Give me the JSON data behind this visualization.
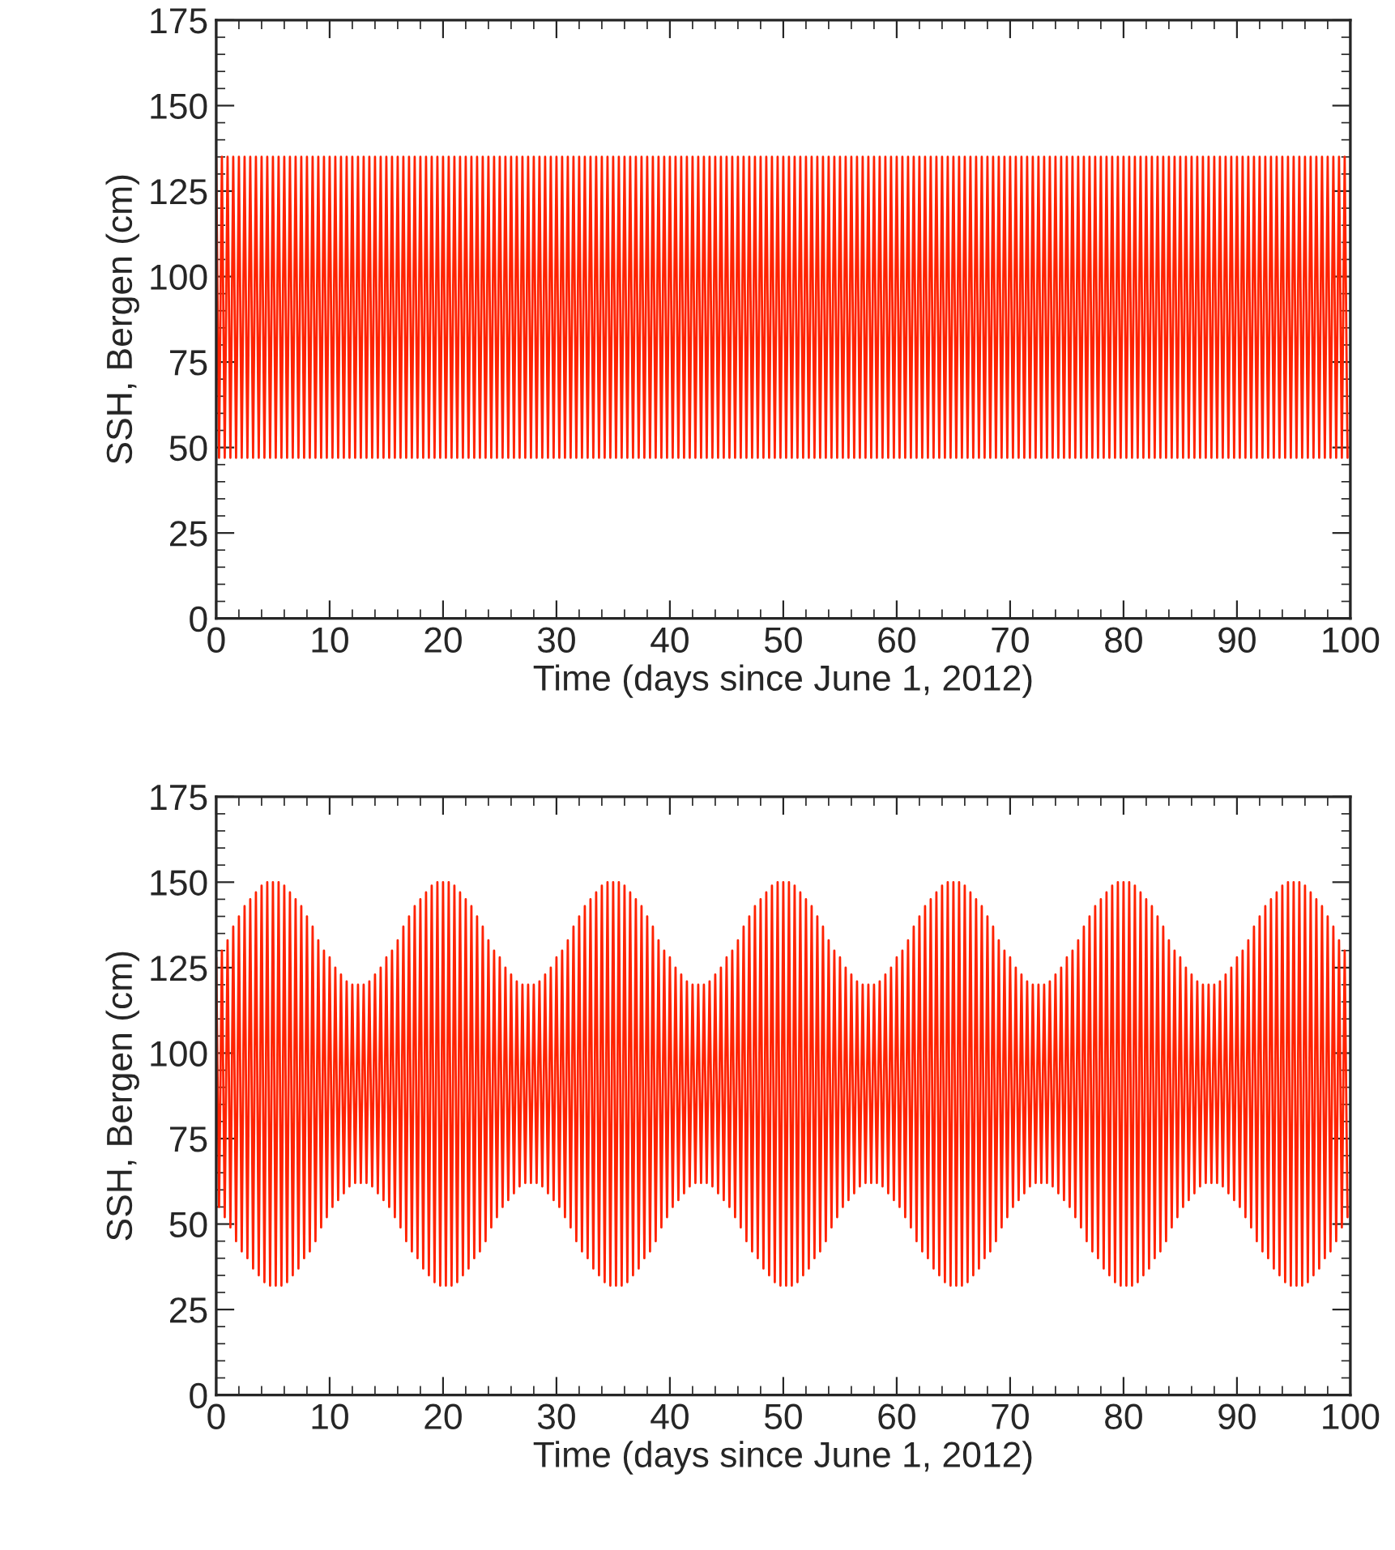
{
  "chart_data": [
    {
      "type": "line",
      "xlabel": "Time (days since June 1, 2012)",
      "ylabel": "SSH, Bergen (cm)",
      "xlim": [
        0,
        100
      ],
      "ylim": [
        0,
        175
      ],
      "xticks": [
        0,
        10,
        20,
        30,
        40,
        50,
        60,
        70,
        80,
        90,
        100
      ],
      "yticks": [
        0,
        25,
        50,
        75,
        100,
        125,
        150,
        175
      ],
      "grid": false,
      "legend": false,
      "marker": "none",
      "line_style": "solid",
      "x": [
        0,
        0.25,
        0.5,
        0.75,
        1,
        1.25,
        1.5,
        1.75,
        2,
        2.25,
        2.5,
        2.75,
        3,
        3.25,
        3.5,
        3.75,
        4,
        4.25,
        4.5,
        4.75,
        5,
        5.25,
        5.5,
        5.75,
        6,
        6.25,
        6.5,
        6.75,
        7,
        7.25,
        7.5,
        7.75,
        8,
        8.25,
        8.5,
        8.75,
        9,
        9.25,
        9.5,
        9.75,
        10,
        10.25,
        10.5,
        10.75,
        11,
        11.25,
        11.5,
        11.75,
        12,
        12.25,
        12.5,
        12.75,
        13,
        13.25,
        13.5,
        13.75,
        14,
        14.25,
        14.5,
        14.75,
        15,
        15.25,
        15.5,
        15.75,
        16,
        16.25,
        16.5,
        16.75,
        17,
        17.25,
        17.5,
        17.75,
        18,
        18.25,
        18.5,
        18.75,
        19,
        19.25,
        19.5,
        19.75,
        20,
        20.25,
        20.5,
        20.75,
        21,
        21.25,
        21.5,
        21.75,
        22,
        22.25,
        22.5,
        22.75,
        23,
        23.25,
        23.5,
        23.75,
        24,
        24.25,
        24.5,
        24.75,
        25,
        25.25,
        25.5,
        25.75,
        26,
        26.25,
        26.5,
        26.75,
        27,
        27.25,
        27.5,
        27.75,
        28,
        28.25,
        28.5,
        28.75,
        29,
        29.25,
        29.5,
        29.75,
        30,
        30.25,
        30.5,
        30.75,
        31,
        31.25,
        31.5,
        31.75,
        32,
        32.25,
        32.5,
        32.75,
        33,
        33.25,
        33.5,
        33.75,
        34,
        34.25,
        34.5,
        34.75,
        35,
        35.25,
        35.5,
        35.75,
        36,
        36.25,
        36.5,
        36.75,
        37,
        37.25,
        37.5,
        37.75,
        38,
        38.25,
        38.5,
        38.75,
        39,
        39.25,
        39.5,
        39.75,
        40,
        40.25,
        40.5,
        40.75,
        41,
        41.25,
        41.5,
        41.75,
        42,
        42.25,
        42.5,
        42.75,
        43,
        43.25,
        43.5,
        43.75,
        44,
        44.25,
        44.5,
        44.75,
        45,
        45.25,
        45.5,
        45.75,
        46,
        46.25,
        46.5,
        46.75,
        47,
        47.25,
        47.5,
        47.75,
        48,
        48.25,
        48.5,
        48.75,
        49,
        49.25,
        49.5,
        49.75,
        50,
        50.25,
        50.5,
        50.75,
        51,
        51.25,
        51.5,
        51.75,
        52,
        52.25,
        52.5,
        52.75,
        53,
        53.25,
        53.5,
        53.75,
        54,
        54.25,
        54.5,
        54.75,
        55,
        55.25,
        55.5,
        55.75,
        56,
        56.25,
        56.5,
        56.75,
        57,
        57.25,
        57.5,
        57.75,
        58,
        58.25,
        58.5,
        58.75,
        59,
        59.25,
        59.5,
        59.75,
        60,
        60.25,
        60.5,
        60.75,
        61,
        61.25,
        61.5,
        61.75,
        62,
        62.25,
        62.5,
        62.75,
        63,
        63.25,
        63.5,
        63.75,
        64,
        64.25,
        64.5,
        64.75,
        65,
        65.25,
        65.5,
        65.75,
        66,
        66.25,
        66.5,
        66.75,
        67,
        67.25,
        67.5,
        67.75,
        68,
        68.25,
        68.5,
        68.75,
        69,
        69.25,
        69.5,
        69.75,
        70,
        70.25,
        70.5,
        70.75,
        71,
        71.25,
        71.5,
        71.75,
        72,
        72.25,
        72.5,
        72.75,
        73,
        73.25,
        73.5,
        73.75,
        74,
        74.25,
        74.5,
        74.75,
        75,
        75.25,
        75.5,
        75.75,
        76,
        76.25,
        76.5,
        76.75,
        77,
        77.25,
        77.5,
        77.75,
        78,
        78.25,
        78.5,
        78.75,
        79,
        79.25,
        79.5,
        79.75,
        80,
        80.25,
        80.5,
        80.75,
        81,
        81.25,
        81.5,
        81.75,
        82,
        82.25,
        82.5,
        82.75,
        83,
        83.25,
        83.5,
        83.75,
        84,
        84.25,
        84.5,
        84.75,
        85,
        85.25,
        85.5,
        85.75,
        86,
        86.25,
        86.5,
        86.75,
        87,
        87.25,
        87.5,
        87.75,
        88,
        88.25,
        88.5,
        88.75,
        89,
        89.25,
        89.5,
        89.75,
        90,
        90.25,
        90.5,
        90.75,
        91,
        91.25,
        91.5,
        91.75,
        92,
        92.25,
        92.5,
        92.75,
        93,
        93.25,
        93.5,
        93.75,
        94,
        94.25,
        94.5,
        94.75,
        95,
        95.25,
        95.5,
        95.75,
        96,
        96.25,
        96.5,
        96.75,
        97,
        97.25,
        97.5,
        97.75,
        98,
        98.25,
        98.5,
        98.75,
        99,
        99.25,
        99.5,
        99.75
      ],
      "series": [
        {
          "color": "#ff2200",
          "values": [
            135,
            47,
            135,
            47,
            135,
            47,
            135,
            47,
            135,
            47,
            135,
            47,
            135,
            47,
            135,
            47,
            135,
            47,
            135,
            47,
            135,
            47,
            135,
            47,
            135,
            47,
            135,
            47,
            135,
            47,
            135,
            47,
            135,
            47,
            135,
            47,
            135,
            47,
            135,
            47,
            135,
            47,
            135,
            47,
            135,
            47,
            135,
            47,
            135,
            47,
            135,
            47,
            135,
            47,
            135,
            47,
            135,
            47,
            135,
            47,
            135,
            47,
            135,
            47,
            135,
            47,
            135,
            47,
            135,
            47,
            135,
            47,
            135,
            47,
            135,
            47,
            135,
            47,
            135,
            47,
            135,
            47,
            135,
            47,
            135,
            47,
            135,
            47,
            135,
            47,
            135,
            47,
            135,
            47,
            135,
            47,
            135,
            47,
            135,
            47,
            135,
            47,
            135,
            47,
            135,
            47,
            135,
            47,
            135,
            47,
            135,
            47,
            135,
            47,
            135,
            47,
            135,
            47,
            135,
            47,
            135,
            47,
            135,
            47,
            135,
            47,
            135,
            47,
            135,
            47,
            135,
            47,
            135,
            47,
            135,
            47,
            135,
            47,
            135,
            47,
            135,
            47,
            135,
            47,
            135,
            47,
            135,
            47,
            135,
            47,
            135,
            47,
            135,
            47,
            135,
            47,
            135,
            47,
            135,
            47,
            135,
            47,
            135,
            47,
            135,
            47,
            135,
            47,
            135,
            47,
            135,
            47,
            135,
            47,
            135,
            47,
            135,
            47,
            135,
            47,
            135,
            47,
            135,
            47,
            135,
            47,
            135,
            47,
            135,
            47,
            135,
            47,
            135,
            47,
            135,
            47,
            135,
            47,
            135,
            47,
            135,
            47,
            135,
            47,
            135,
            47,
            135,
            47,
            135,
            47,
            135,
            47,
            135,
            47,
            135,
            47,
            135,
            47,
            135,
            47,
            135,
            47,
            135,
            47,
            135,
            47,
            135,
            47,
            135,
            47,
            135,
            47,
            135,
            47,
            135,
            47,
            135,
            47,
            135,
            47,
            135,
            47,
            135,
            47,
            135,
            47,
            135,
            47,
            135,
            47,
            135,
            47,
            135,
            47,
            135,
            47,
            135,
            47,
            135,
            47,
            135,
            47,
            135,
            47,
            135,
            47,
            135,
            47,
            135,
            47,
            135,
            47,
            135,
            47,
            135,
            47,
            135,
            47,
            135,
            47,
            135,
            47,
            135,
            47,
            135,
            47,
            135,
            47,
            135,
            47,
            135,
            47,
            135,
            47,
            135,
            47,
            135,
            47,
            135,
            47,
            135,
            47,
            135,
            47,
            135,
            47,
            135,
            47,
            135,
            47,
            135,
            47,
            135,
            47,
            135,
            47,
            135,
            47,
            135,
            47,
            135,
            47,
            135,
            47,
            135,
            47,
            135,
            47,
            135,
            47,
            135,
            47,
            135,
            47,
            135,
            47,
            135,
            47,
            135,
            47,
            135,
            47,
            135,
            47,
            135,
            47,
            135,
            47,
            135,
            47,
            135,
            47,
            135,
            47,
            135,
            47,
            135,
            47,
            135,
            47,
            135,
            47,
            135,
            47,
            135,
            47,
            135,
            47,
            135,
            47,
            135,
            47,
            135,
            47,
            135,
            47,
            135,
            47,
            135,
            47,
            135,
            47,
            135,
            47,
            135,
            47,
            135,
            47,
            135,
            47,
            135,
            47,
            135,
            47,
            135,
            47,
            135,
            47,
            135,
            47
          ]
        }
      ]
    },
    {
      "type": "line",
      "xlabel": "Time (days since June 1, 2012)",
      "ylabel": "SSH, Bergen (cm)",
      "xlim": [
        0,
        100
      ],
      "ylim": [
        0,
        175
      ],
      "xticks": [
        0,
        10,
        20,
        30,
        40,
        50,
        60,
        70,
        80,
        90,
        100
      ],
      "yticks": [
        0,
        25,
        50,
        75,
        100,
        125,
        150,
        175
      ],
      "grid": false,
      "legend": false,
      "marker": "none",
      "line_style": "solid",
      "x": [
        0,
        0.25,
        0.5,
        0.75,
        1,
        1.25,
        1.5,
        1.75,
        2,
        2.25,
        2.5,
        2.75,
        3,
        3.25,
        3.5,
        3.75,
        4,
        4.25,
        4.5,
        4.75,
        5,
        5.25,
        5.5,
        5.75,
        6,
        6.25,
        6.5,
        6.75,
        7,
        7.25,
        7.5,
        7.75,
        8,
        8.25,
        8.5,
        8.75,
        9,
        9.25,
        9.5,
        9.75,
        10,
        10.25,
        10.5,
        10.75,
        11,
        11.25,
        11.5,
        11.75,
        12,
        12.25,
        12.5,
        12.75,
        13,
        13.25,
        13.5,
        13.75,
        14,
        14.25,
        14.5,
        14.75,
        15,
        15.25,
        15.5,
        15.75,
        16,
        16.25,
        16.5,
        16.75,
        17,
        17.25,
        17.5,
        17.75,
        18,
        18.25,
        18.5,
        18.75,
        19,
        19.25,
        19.5,
        19.75,
        20,
        20.25,
        20.5,
        20.75,
        21,
        21.25,
        21.5,
        21.75,
        22,
        22.25,
        22.5,
        22.75,
        23,
        23.25,
        23.5,
        23.75,
        24,
        24.25,
        24.5,
        24.75,
        25,
        25.25,
        25.5,
        25.75,
        26,
        26.25,
        26.5,
        26.75,
        27,
        27.25,
        27.5,
        27.75,
        28,
        28.25,
        28.5,
        28.75,
        29,
        29.25,
        29.5,
        29.75,
        30,
        30.25,
        30.5,
        30.75,
        31,
        31.25,
        31.5,
        31.75,
        32,
        32.25,
        32.5,
        32.75,
        33,
        33.25,
        33.5,
        33.75,
        34,
        34.25,
        34.5,
        34.75,
        35,
        35.25,
        35.5,
        35.75,
        36,
        36.25,
        36.5,
        36.75,
        37,
        37.25,
        37.5,
        37.75,
        38,
        38.25,
        38.5,
        38.75,
        39,
        39.25,
        39.5,
        39.75,
        40,
        40.25,
        40.5,
        40.75,
        41,
        41.25,
        41.5,
        41.75,
        42,
        42.25,
        42.5,
        42.75,
        43,
        43.25,
        43.5,
        43.75,
        44,
        44.25,
        44.5,
        44.75,
        45,
        45.25,
        45.5,
        45.75,
        46,
        46.25,
        46.5,
        46.75,
        47,
        47.25,
        47.5,
        47.75,
        48,
        48.25,
        48.5,
        48.75,
        49,
        49.25,
        49.5,
        49.75,
        50,
        50.25,
        50.5,
        50.75,
        51,
        51.25,
        51.5,
        51.75,
        52,
        52.25,
        52.5,
        52.75,
        53,
        53.25,
        53.5,
        53.75,
        54,
        54.25,
        54.5,
        54.75,
        55,
        55.25,
        55.5,
        55.75,
        56,
        56.25,
        56.5,
        56.75,
        57,
        57.25,
        57.5,
        57.75,
        58,
        58.25,
        58.5,
        58.75,
        59,
        59.25,
        59.5,
        59.75,
        60,
        60.25,
        60.5,
        60.75,
        61,
        61.25,
        61.5,
        61.75,
        62,
        62.25,
        62.5,
        62.75,
        63,
        63.25,
        63.5,
        63.75,
        64,
        64.25,
        64.5,
        64.75,
        65,
        65.25,
        65.5,
        65.75,
        66,
        66.25,
        66.5,
        66.75,
        67,
        67.25,
        67.5,
        67.75,
        68,
        68.25,
        68.5,
        68.75,
        69,
        69.25,
        69.5,
        69.75,
        70,
        70.25,
        70.5,
        70.75,
        71,
        71.25,
        71.5,
        71.75,
        72,
        72.25,
        72.5,
        72.75,
        73,
        73.25,
        73.5,
        73.75,
        74,
        74.25,
        74.5,
        74.75,
        75,
        75.25,
        75.5,
        75.75,
        76,
        76.25,
        76.5,
        76.75,
        77,
        77.25,
        77.5,
        77.75,
        78,
        78.25,
        78.5,
        78.75,
        79,
        79.25,
        79.5,
        79.75,
        80,
        80.25,
        80.5,
        80.75,
        81,
        81.25,
        81.5,
        81.75,
        82,
        82.25,
        82.5,
        82.75,
        83,
        83.25,
        83.5,
        83.75,
        84,
        84.25,
        84.5,
        84.75,
        85,
        85.25,
        85.5,
        85.75,
        86,
        86.25,
        86.5,
        86.75,
        87,
        87.25,
        87.5,
        87.75,
        88,
        88.25,
        88.5,
        88.75,
        89,
        89.25,
        89.5,
        89.75,
        90,
        90.25,
        90.5,
        90.75,
        91,
        91.25,
        91.5,
        91.75,
        92,
        92.25,
        92.5,
        92.75,
        93,
        93.25,
        93.5,
        93.75,
        94,
        94.25,
        94.5,
        94.75,
        95,
        95.25,
        95.5,
        95.75,
        96,
        96.25,
        96.5,
        96.75,
        97,
        97.25,
        97.5,
        97.75,
        98,
        98.25,
        98.5,
        98.75,
        99,
        99.25,
        99.5,
        99.75
      ],
      "series": [
        {
          "color": "#ff2200",
          "values": [
            128,
            55,
            130,
            52,
            133,
            49,
            137,
            45,
            140,
            42,
            143,
            40,
            145,
            37,
            147,
            35,
            149,
            33,
            150,
            32,
            150,
            32,
            150,
            32,
            149,
            33,
            147,
            35,
            145,
            37,
            143,
            40,
            140,
            42,
            137,
            45,
            133,
            49,
            130,
            52,
            128,
            55,
            125,
            57,
            123,
            59,
            121,
            61,
            120,
            62,
            120,
            62,
            120,
            62,
            121,
            61,
            123,
            59,
            125,
            57,
            128,
            55,
            130,
            52,
            133,
            49,
            137,
            45,
            140,
            42,
            143,
            40,
            145,
            37,
            147,
            35,
            149,
            33,
            150,
            32,
            150,
            32,
            150,
            32,
            149,
            33,
            147,
            35,
            145,
            37,
            143,
            40,
            140,
            42,
            137,
            45,
            133,
            49,
            130,
            52,
            128,
            55,
            125,
            57,
            123,
            59,
            121,
            61,
            120,
            62,
            120,
            62,
            120,
            62,
            121,
            61,
            123,
            59,
            125,
            57,
            128,
            55,
            130,
            52,
            133,
            49,
            137,
            45,
            140,
            42,
            143,
            40,
            145,
            37,
            147,
            35,
            149,
            33,
            150,
            32,
            150,
            32,
            150,
            32,
            149,
            33,
            147,
            35,
            145,
            37,
            143,
            40,
            140,
            42,
            137,
            45,
            133,
            49,
            130,
            52,
            128,
            55,
            125,
            57,
            123,
            59,
            121,
            61,
            120,
            62,
            120,
            62,
            120,
            62,
            121,
            61,
            123,
            59,
            125,
            57,
            128,
            55,
            130,
            52,
            133,
            49,
            137,
            45,
            140,
            42,
            143,
            40,
            145,
            37,
            147,
            35,
            149,
            33,
            150,
            32,
            150,
            32,
            150,
            32,
            149,
            33,
            147,
            35,
            145,
            37,
            143,
            40,
            140,
            42,
            137,
            45,
            133,
            49,
            130,
            52,
            128,
            55,
            125,
            57,
            123,
            59,
            121,
            61,
            120,
            62,
            120,
            62,
            120,
            62,
            121,
            61,
            123,
            59,
            125,
            57,
            128,
            55,
            130,
            52,
            133,
            49,
            137,
            45,
            140,
            42,
            143,
            40,
            145,
            37,
            147,
            35,
            149,
            33,
            150,
            32,
            150,
            32,
            150,
            32,
            149,
            33,
            147,
            35,
            145,
            37,
            143,
            40,
            140,
            42,
            137,
            45,
            133,
            49,
            130,
            52,
            128,
            55,
            125,
            57,
            123,
            59,
            121,
            61,
            120,
            62,
            120,
            62,
            120,
            62,
            121,
            61,
            123,
            59,
            125,
            57,
            128,
            55,
            130,
            52,
            133,
            49,
            137,
            45,
            140,
            42,
            143,
            40,
            145,
            37,
            147,
            35,
            149,
            33,
            150,
            32,
            150,
            32,
            150,
            32,
            149,
            33,
            147,
            35,
            145,
            37,
            143,
            40,
            140,
            42,
            137,
            45,
            133,
            49,
            130,
            52,
            128,
            55,
            125,
            57,
            123,
            59,
            121,
            61,
            120,
            62,
            120,
            62,
            120,
            62,
            121,
            61,
            123,
            59,
            125,
            57,
            128,
            55,
            130,
            52,
            133,
            49,
            137,
            45,
            140,
            42,
            143,
            40,
            145,
            37,
            147,
            35,
            149,
            33,
            150,
            32,
            150,
            32,
            150,
            32,
            149,
            33,
            147,
            35,
            145,
            37,
            143,
            40,
            140,
            42,
            137,
            45,
            133,
            49,
            130,
            52
          ]
        }
      ]
    }
  ]
}
